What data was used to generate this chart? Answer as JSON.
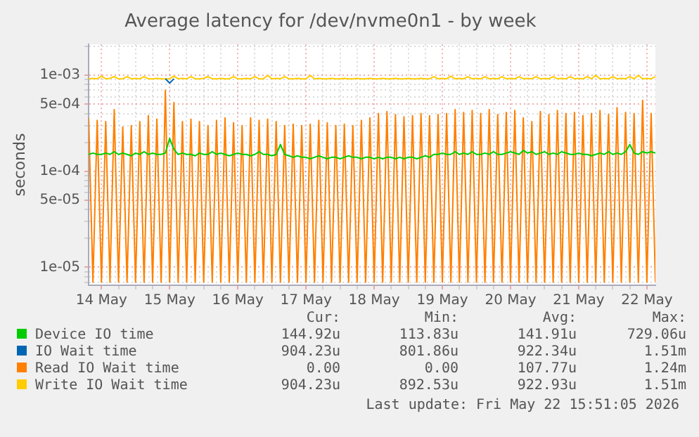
{
  "chart_data": {
    "type": "line",
    "title": "Average latency for /dev/nvme0n1 - by week",
    "ylabel": "seconds",
    "log": "y",
    "grid": true,
    "legend": "bottom",
    "x": [
      "2026-05-13T19:30",
      "2026-05-13T21:00",
      "2026-05-13T22:30",
      "2026-05-14T00:00",
      "2026-05-14T01:30",
      "2026-05-14T03:00",
      "2026-05-14T04:30",
      "2026-05-14T06:00",
      "2026-05-14T07:30",
      "2026-05-14T09:00",
      "2026-05-14T10:30",
      "2026-05-14T12:00",
      "2026-05-14T13:30",
      "2026-05-14T15:00",
      "2026-05-14T16:30",
      "2026-05-14T18:00",
      "2026-05-14T19:30",
      "2026-05-14T21:00",
      "2026-05-14T22:30",
      "2026-05-15T00:00",
      "2026-05-15T01:30",
      "2026-05-15T03:00",
      "2026-05-15T04:30",
      "2026-05-15T06:00",
      "2026-05-15T07:30",
      "2026-05-15T09:00",
      "2026-05-15T10:30",
      "2026-05-15T12:00",
      "2026-05-15T13:30",
      "2026-05-15T15:00",
      "2026-05-15T16:30",
      "2026-05-15T18:00",
      "2026-05-15T19:30",
      "2026-05-15T21:00",
      "2026-05-15T22:30",
      "2026-05-16T00:00",
      "2026-05-16T01:30",
      "2026-05-16T03:00",
      "2026-05-16T04:30",
      "2026-05-16T06:00",
      "2026-05-16T07:30",
      "2026-05-16T09:00",
      "2026-05-16T10:30",
      "2026-05-16T12:00",
      "2026-05-16T13:30",
      "2026-05-16T15:00",
      "2026-05-16T16:30",
      "2026-05-16T18:00",
      "2026-05-16T19:30",
      "2026-05-16T21:00",
      "2026-05-16T22:30",
      "2026-05-17T00:00",
      "2026-05-17T01:30",
      "2026-05-17T03:00",
      "2026-05-17T04:30",
      "2026-05-17T06:00",
      "2026-05-17T07:30",
      "2026-05-17T09:00",
      "2026-05-17T10:30",
      "2026-05-17T12:00",
      "2026-05-17T13:30",
      "2026-05-17T15:00",
      "2026-05-17T16:30",
      "2026-05-17T18:00",
      "2026-05-17T19:30",
      "2026-05-17T21:00",
      "2026-05-17T22:30",
      "2026-05-18T00:00",
      "2026-05-18T01:30",
      "2026-05-18T03:00",
      "2026-05-18T04:30",
      "2026-05-18T06:00",
      "2026-05-18T07:30",
      "2026-05-18T09:00",
      "2026-05-18T10:30",
      "2026-05-18T12:00",
      "2026-05-18T13:30",
      "2026-05-18T15:00",
      "2026-05-18T16:30",
      "2026-05-18T18:00",
      "2026-05-18T19:30",
      "2026-05-18T21:00",
      "2026-05-18T22:30",
      "2026-05-19T00:00",
      "2026-05-19T01:30",
      "2026-05-19T03:00",
      "2026-05-19T04:30",
      "2026-05-19T06:00",
      "2026-05-19T07:30",
      "2026-05-19T09:00",
      "2026-05-19T10:30",
      "2026-05-19T12:00",
      "2026-05-19T13:30",
      "2026-05-19T15:00",
      "2026-05-19T16:30",
      "2026-05-19T18:00",
      "2026-05-19T19:30",
      "2026-05-19T21:00",
      "2026-05-19T22:30",
      "2026-05-20T00:00",
      "2026-05-20T01:30",
      "2026-05-20T03:00",
      "2026-05-20T04:30",
      "2026-05-20T06:00",
      "2026-05-20T07:30",
      "2026-05-20T09:00",
      "2026-05-20T10:30",
      "2026-05-20T12:00",
      "2026-05-20T13:30",
      "2026-05-20T15:00",
      "2026-05-20T16:30",
      "2026-05-20T18:00",
      "2026-05-20T19:30",
      "2026-05-20T21:00",
      "2026-05-20T22:30",
      "2026-05-21T00:00",
      "2026-05-21T01:30",
      "2026-05-21T03:00",
      "2026-05-21T04:30",
      "2026-05-21T06:00",
      "2026-05-21T07:30",
      "2026-05-21T09:00",
      "2026-05-21T10:30",
      "2026-05-21T12:00",
      "2026-05-21T13:30",
      "2026-05-21T15:00",
      "2026-05-21T16:30",
      "2026-05-21T18:00",
      "2026-05-21T19:30",
      "2026-05-21T21:00",
      "2026-05-21T22:30",
      "2026-05-22T00:00",
      "2026-05-22T01:30",
      "2026-05-22T03:00"
    ],
    "xlim": [
      "2026-05-13T19:30",
      "2026-05-22T03:00"
    ],
    "xticks": [
      {
        "value": "2026-05-14T00:00",
        "label": "14 May"
      },
      {
        "value": "2026-05-14T06:00",
        "label": null
      },
      {
        "value": "2026-05-14T12:00",
        "label": null
      },
      {
        "value": "2026-05-14T18:00",
        "label": null
      },
      {
        "value": "2026-05-15T00:00",
        "label": "15 May"
      },
      {
        "value": "2026-05-15T06:00",
        "label": null
      },
      {
        "value": "2026-05-15T12:00",
        "label": null
      },
      {
        "value": "2026-05-15T18:00",
        "label": null
      },
      {
        "value": "2026-05-16T00:00",
        "label": "16 May"
      },
      {
        "value": "2026-05-16T06:00",
        "label": null
      },
      {
        "value": "2026-05-16T12:00",
        "label": null
      },
      {
        "value": "2026-05-16T18:00",
        "label": null
      },
      {
        "value": "2026-05-17T00:00",
        "label": "17 May"
      },
      {
        "value": "2026-05-17T06:00",
        "label": null
      },
      {
        "value": "2026-05-17T12:00",
        "label": null
      },
      {
        "value": "2026-05-17T18:00",
        "label": null
      },
      {
        "value": "2026-05-18T00:00",
        "label": "18 May"
      },
      {
        "value": "2026-05-18T06:00",
        "label": null
      },
      {
        "value": "2026-05-18T12:00",
        "label": null
      },
      {
        "value": "2026-05-18T18:00",
        "label": null
      },
      {
        "value": "2026-05-19T00:00",
        "label": "19 May"
      },
      {
        "value": "2026-05-19T06:00",
        "label": null
      },
      {
        "value": "2026-05-19T12:00",
        "label": null
      },
      {
        "value": "2026-05-19T18:00",
        "label": null
      },
      {
        "value": "2026-05-20T00:00",
        "label": "20 May"
      },
      {
        "value": "2026-05-20T06:00",
        "label": null
      },
      {
        "value": "2026-05-20T12:00",
        "label": null
      },
      {
        "value": "2026-05-20T18:00",
        "label": null
      },
      {
        "value": "2026-05-21T00:00",
        "label": "21 May"
      },
      {
        "value": "2026-05-21T06:00",
        "label": null
      },
      {
        "value": "2026-05-21T12:00",
        "label": null
      },
      {
        "value": "2026-05-21T18:00",
        "label": null
      },
      {
        "value": "2026-05-22T00:00",
        "label": "22 May"
      }
    ],
    "ylim": [
      6.5e-06,
      0.0021
    ],
    "yticks": [
      {
        "value": 7e-06,
        "label": null
      },
      {
        "value": 8e-06,
        "label": null
      },
      {
        "value": 9e-06,
        "label": null
      },
      {
        "value": 1e-05,
        "label": "1e-05"
      },
      {
        "value": 2e-05,
        "label": null
      },
      {
        "value": 3e-05,
        "label": null
      },
      {
        "value": 4e-05,
        "label": null
      },
      {
        "value": 5e-05,
        "label": "5e-05"
      },
      {
        "value": 6e-05,
        "label": null
      },
      {
        "value": 7e-05,
        "label": null
      },
      {
        "value": 8e-05,
        "label": null
      },
      {
        "value": 9e-05,
        "label": null
      },
      {
        "value": 0.0001,
        "label": "1e-04"
      },
      {
        "value": 0.0002,
        "label": null
      },
      {
        "value": 0.0003,
        "label": null
      },
      {
        "value": 0.0004,
        "label": null
      },
      {
        "value": 0.0005,
        "label": "5e-04"
      },
      {
        "value": 0.0006,
        "label": null
      },
      {
        "value": 0.0007,
        "label": null
      },
      {
        "value": 0.0008,
        "label": null
      },
      {
        "value": 0.0009,
        "label": null
      },
      {
        "value": 0.001,
        "label": "1e-03"
      },
      {
        "value": 0.002,
        "label": null
      }
    ],
    "series": [
      {
        "name": "Device IO time",
        "color": "#00cc00",
        "values": [
          0.00015,
          0.000155,
          0.00015,
          0.00015,
          0.000155,
          0.00015,
          0.00016,
          0.00015,
          0.000155,
          0.00015,
          0.000145,
          0.000155,
          0.00015,
          0.00016,
          0.00015,
          0.000155,
          0.00015,
          0.00015,
          0.000155,
          0.00022,
          0.00017,
          0.00015,
          0.000155,
          0.00015,
          0.00015,
          0.000145,
          0.000155,
          0.00015,
          0.00015,
          0.00016,
          0.00015,
          0.000155,
          0.00015,
          0.000145,
          0.00015,
          0.000155,
          0.00015,
          0.00015,
          0.000145,
          0.00015,
          0.00016,
          0.00015,
          0.00015,
          0.000145,
          0.00015,
          0.00019,
          0.00015,
          0.000145,
          0.00014,
          0.000145,
          0.00014,
          0.00014,
          0.000135,
          0.00014,
          0.000145,
          0.00014,
          0.000135,
          0.00014,
          0.00014,
          0.000135,
          0.00014,
          0.000145,
          0.00014,
          0.00014,
          0.000135,
          0.00014,
          0.00014,
          0.000135,
          0.00014,
          0.000135,
          0.00014,
          0.00014,
          0.000135,
          0.00014,
          0.000135,
          0.00014,
          0.00014,
          0.000135,
          0.00014,
          0.000145,
          0.00014,
          0.00015,
          0.00015,
          0.000155,
          0.00015,
          0.00015,
          0.00016,
          0.00015,
          0.000155,
          0.00015,
          0.00016,
          0.00015,
          0.00015,
          0.000155,
          0.00015,
          0.00016,
          0.00015,
          0.00015,
          0.000155,
          0.00016,
          0.000155,
          0.00015,
          0.000165,
          0.000155,
          0.00016,
          0.00015,
          0.000155,
          0.00016,
          0.00015,
          0.000155,
          0.00015,
          0.00016,
          0.000155,
          0.00015,
          0.00015,
          0.000155,
          0.00015,
          0.00015,
          0.000145,
          0.00015,
          0.000155,
          0.00015,
          0.00016,
          0.00015,
          0.000155,
          0.00015,
          0.00016,
          0.00019,
          0.000155,
          0.00015,
          0.00016,
          0.000155,
          0.00016,
          0.000155
        ]
      },
      {
        "name": "IO Wait time",
        "color": "#0066b3",
        "values": [
          null,
          null,
          null,
          null,
          null,
          null,
          null,
          null,
          null,
          null,
          null,
          null,
          null,
          null,
          null,
          null,
          null,
          null,
          0.00092,
          0.00083,
          0.00092,
          null,
          null,
          null,
          null,
          null,
          null,
          null,
          null,
          null,
          null,
          null,
          null,
          null,
          null,
          null,
          null,
          null,
          null,
          null,
          null,
          null,
          null,
          null,
          null,
          null,
          null,
          null,
          null,
          null,
          null,
          null,
          null,
          null,
          null,
          null,
          null,
          null,
          null,
          null,
          null,
          null,
          null,
          null,
          null,
          null,
          null,
          null,
          null,
          null,
          null,
          null,
          null,
          null,
          null,
          null,
          null,
          null,
          null,
          null,
          null,
          null,
          null,
          null,
          null,
          null,
          null,
          null,
          null,
          null,
          null,
          null,
          null,
          null,
          null,
          null,
          null,
          null,
          null,
          null,
          null,
          null,
          null,
          null,
          null,
          null,
          null,
          null,
          null,
          null,
          null,
          null,
          null,
          null,
          null,
          null,
          null,
          null,
          null,
          null,
          null,
          null,
          null,
          null,
          null,
          null,
          null,
          null,
          null,
          null,
          null,
          null,
          null,
          null
        ]
      },
      {
        "name": "Read IO Wait time",
        "color": "#ff8000",
        "values": [
          0.00036,
          7e-06,
          0.00034,
          7e-06,
          0.00033,
          7e-06,
          0.00044,
          7e-06,
          0.00029,
          7e-06,
          0.0003,
          7e-06,
          0.00033,
          7e-06,
          0.00038,
          7e-06,
          0.00035,
          7e-06,
          0.0007,
          7e-06,
          0.00052,
          7e-06,
          0.00033,
          7e-06,
          0.00035,
          7e-06,
          0.00033,
          7e-06,
          0.0003,
          7e-06,
          0.00034,
          7e-06,
          0.00036,
          7e-06,
          0.00032,
          7e-06,
          0.0003,
          7e-06,
          0.00036,
          7e-06,
          0.00034,
          7e-06,
          0.00035,
          7e-06,
          0.00033,
          7e-06,
          0.0003,
          7e-06,
          0.00031,
          7e-06,
          0.0003,
          7e-06,
          0.00031,
          7e-06,
          0.00034,
          7e-06,
          0.00032,
          7e-06,
          0.0003,
          7e-06,
          0.00031,
          7e-06,
          0.0003,
          7e-06,
          0.00034,
          7e-06,
          0.00036,
          7e-06,
          0.0004,
          7e-06,
          0.00042,
          7e-06,
          0.00039,
          7e-06,
          0.00037,
          7e-06,
          0.00038,
          7e-06,
          0.0004,
          7e-06,
          0.00038,
          7e-06,
          0.00039,
          7e-06,
          0.0004,
          7e-06,
          0.00044,
          7e-06,
          0.00041,
          7e-06,
          0.00043,
          7e-06,
          0.0004,
          7e-06,
          0.00044,
          7e-06,
          0.00039,
          7e-06,
          0.00041,
          7e-06,
          0.00043,
          7e-06,
          0.00036,
          7e-06,
          0.00033,
          7e-06,
          0.00042,
          7e-06,
          0.00039,
          7e-06,
          0.00043,
          7e-06,
          0.0004,
          7e-06,
          0.00041,
          7e-06,
          0.00038,
          7e-06,
          0.0004,
          7e-06,
          0.00043,
          7e-06,
          0.00039,
          7e-06,
          0.00046,
          7e-06,
          0.00041,
          7e-06,
          0.0004,
          7e-06,
          0.00055,
          7e-06,
          0.0004,
          7e-06
        ]
      },
      {
        "name": "Write IO Wait time",
        "color": "#ffcc00",
        "values": [
          0.00092,
          0.00093,
          0.00092,
          0.00098,
          0.00092,
          0.00093,
          0.00097,
          0.00092,
          0.00092,
          0.00097,
          0.00092,
          0.00093,
          0.00092,
          0.00097,
          0.00092,
          0.00092,
          0.00093,
          0.00092,
          0.00092,
          0.00092,
          0.00098,
          0.00092,
          0.00093,
          0.00092,
          0.00097,
          0.00092,
          0.00092,
          0.00093,
          0.00097,
          0.00092,
          0.00092,
          0.00093,
          0.00092,
          0.00092,
          0.00097,
          0.00092,
          0.00092,
          0.00093,
          0.00092,
          0.00097,
          0.00092,
          0.00092,
          0.001,
          0.00092,
          0.00093,
          0.00092,
          0.00097,
          0.00092,
          0.00092,
          0.00093,
          0.00092,
          0.00092,
          0.001,
          0.00092,
          0.00093,
          0.00092,
          0.00092,
          0.00093,
          0.00092,
          0.00092,
          0.00093,
          0.00092,
          0.00092,
          0.00093,
          0.00092,
          0.00092,
          0.00093,
          0.00092,
          0.00092,
          0.00093,
          0.00092,
          0.00092,
          0.00093,
          0.00092,
          0.00092,
          0.00093,
          0.00092,
          0.00092,
          0.00093,
          0.00092,
          0.00092,
          0.00097,
          0.00092,
          0.00093,
          0.00092,
          0.00098,
          0.00092,
          0.00093,
          0.00092,
          0.00097,
          0.00092,
          0.00093,
          0.00092,
          0.00097,
          0.00092,
          0.00093,
          0.00092,
          0.00097,
          0.00092,
          0.00093,
          0.00092,
          0.00097,
          0.00092,
          0.00093,
          0.00092,
          0.00097,
          0.00092,
          0.00093,
          0.00092,
          0.00097,
          0.00092,
          0.00093,
          0.00092,
          0.00097,
          0.00092,
          0.00093,
          0.00092,
          0.00097,
          0.00092,
          0.001,
          0.00092,
          0.00093,
          0.00092,
          0.00097,
          0.00092,
          0.00093,
          0.00092,
          0.00097,
          0.00092,
          0.001,
          0.00092,
          0.00093,
          0.00092,
          0.00097
        ]
      }
    ],
    "annotations": [
      "Cur:",
      "Min:",
      "Avg:",
      "Max:",
      "144.92u",
      "113.83u",
      "141.91u",
      "729.06u",
      "904.23u",
      "801.86u",
      "922.34u",
      "1.51m",
      "0.00",
      "0.00",
      "107.77u",
      "1.24m",
      "904.23u",
      "892.53u",
      "922.93u",
      "1.51m",
      "Last update: Fri May 22 15:51:05 2026"
    ]
  }
}
